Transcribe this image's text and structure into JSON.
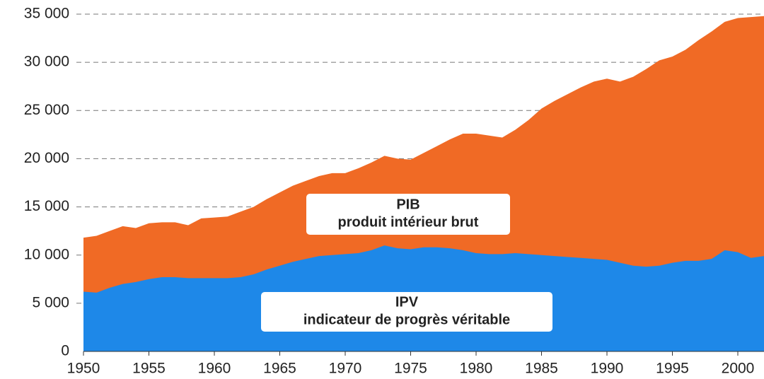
{
  "chart_data": {
    "type": "area",
    "x": [
      1950,
      1951,
      1952,
      1953,
      1954,
      1955,
      1956,
      1957,
      1958,
      1959,
      1960,
      1961,
      1962,
      1963,
      1964,
      1965,
      1966,
      1967,
      1968,
      1969,
      1970,
      1971,
      1972,
      1973,
      1974,
      1975,
      1976,
      1977,
      1978,
      1979,
      1980,
      1981,
      1982,
      1983,
      1984,
      1985,
      1986,
      1987,
      1988,
      1989,
      1990,
      1991,
      1992,
      1993,
      1994,
      1995,
      1996,
      1997,
      1998,
      1999,
      2000,
      2001,
      2002
    ],
    "series": [
      {
        "name": "PIB",
        "description": "produit intérieur brut",
        "color": "#f06a25",
        "values": [
          11800,
          12000,
          12500,
          13000,
          12800,
          13300,
          13400,
          13400,
          13100,
          13800,
          13900,
          14000,
          14500,
          15000,
          15800,
          16500,
          17200,
          17700,
          18200,
          18500,
          18500,
          19000,
          19600,
          20300,
          20000,
          19900,
          20600,
          21300,
          22000,
          22600,
          22600,
          22400,
          22200,
          23000,
          24000,
          25200,
          26000,
          26700,
          27400,
          28000,
          28300,
          28000,
          28500,
          29300,
          30200,
          30600,
          31300,
          32300,
          33200,
          34200,
          34600,
          34700,
          34800
        ]
      },
      {
        "name": "IPV",
        "description": "indicateur de progrès véritable",
        "color": "#1e88e8",
        "values": [
          6200,
          6100,
          6600,
          7000,
          7200,
          7500,
          7700,
          7700,
          7600,
          7600,
          7600,
          7600,
          7700,
          8000,
          8500,
          8900,
          9300,
          9600,
          9900,
          10000,
          10100,
          10200,
          10500,
          11000,
          10700,
          10600,
          10800,
          10800,
          10700,
          10500,
          10200,
          10100,
          10100,
          10200,
          10100,
          10000,
          9900,
          9800,
          9700,
          9600,
          9500,
          9200,
          8900,
          8800,
          8900,
          9200,
          9400,
          9400,
          9600,
          10500,
          10300,
          9700,
          9900
        ]
      }
    ],
    "xlim": [
      1950,
      2002
    ],
    "xticks": [
      1950,
      1955,
      1960,
      1965,
      1970,
      1975,
      1980,
      1985,
      1990,
      1995,
      2000
    ],
    "ylim": [
      0,
      35000
    ],
    "yticks": [
      0,
      {
        "value": 5000,
        "label": "5 000"
      },
      {
        "value": 10000,
        "label": "10 000"
      },
      {
        "value": 15000,
        "label": "15 000"
      },
      {
        "value": 20000,
        "label": "20 000"
      },
      {
        "value": 25000,
        "label": "25 000"
      },
      {
        "value": 30000,
        "label": "30 000"
      },
      {
        "value": 35000,
        "label": "35 000"
      }
    ],
    "grid": true
  }
}
